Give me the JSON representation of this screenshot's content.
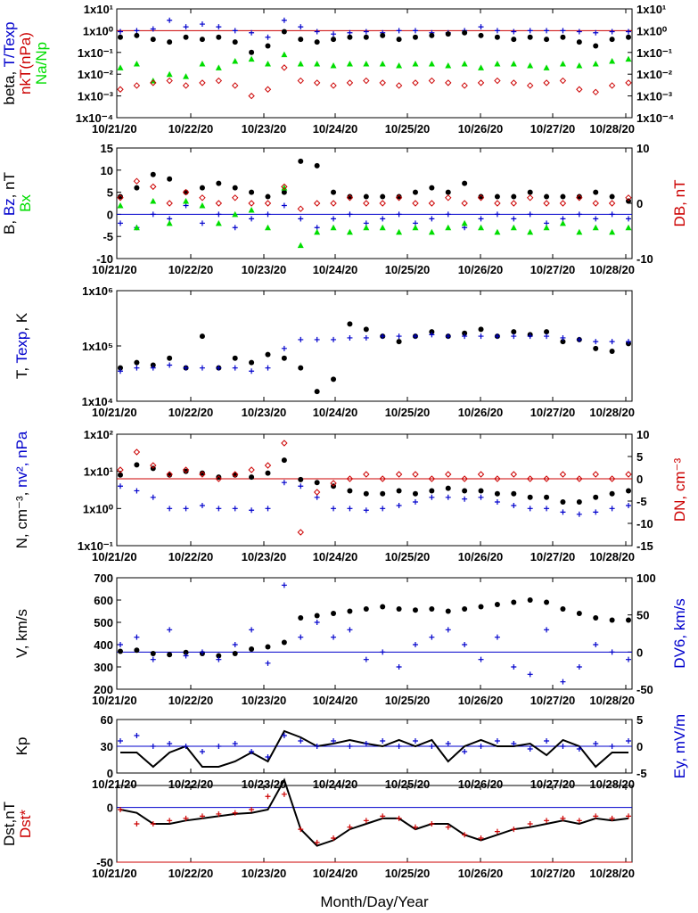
{
  "xlabel": "Month/Day/Year",
  "date_labels": [
    "10/21/20",
    "10/22/20",
    "10/23/20",
    "10/24/20",
    "10/25/20",
    "10/26/20",
    "10/27/20",
    "10/28/20"
  ],
  "colors": {
    "black": "#000000",
    "blue": "#0000cc",
    "red": "#cc0000",
    "green": "#00dd00"
  },
  "chart_data": [
    {
      "id": "beta",
      "type": "scatter",
      "ylabel_left": [
        [
          "beta, ",
          "#000000"
        ],
        [
          "T/Texp",
          "#0000cc"
        ]
      ],
      "ylabel_left2": [
        [
          "nkT(nPa)",
          "#cc0000"
        ]
      ],
      "ylabel_left3": [
        [
          "Na/Np",
          "#00dd00"
        ]
      ],
      "ylim": [
        0.0001,
        10
      ],
      "log": true,
      "tick_labels_left": [
        "1x10¹",
        "1x10⁰",
        "1x10⁻¹",
        "1x10⁻²",
        "1x10⁻³",
        "1x10⁻⁴"
      ],
      "tick_labels_right": [
        "1x10¹",
        "1x10⁰",
        "1x10⁻¹",
        "1x10⁻²",
        "1x10⁻³",
        "1x10⁻⁴"
      ],
      "hline": {
        "value": 1,
        "color": "#cc0000"
      },
      "series": [
        {
          "name": "T/Texp",
          "marker": "plus",
          "color": "#0000cc",
          "values": [
            0.9,
            1,
            1.2,
            3,
            1.5,
            2,
            1.5,
            1,
            0.8,
            0.5,
            3,
            1.5,
            0.9,
            0.7,
            0.8,
            0.9,
            0.8,
            1,
            1,
            0.8,
            0.8,
            1,
            1.5,
            1,
            0.9,
            1,
            1,
            1,
            0.9,
            0.8,
            0.9,
            0.9
          ]
        },
        {
          "name": "beta",
          "marker": "circle",
          "color": "#000000",
          "values": [
            0.5,
            0.6,
            0.4,
            0.3,
            0.5,
            0.4,
            0.5,
            0.3,
            0.1,
            0.2,
            0.9,
            0.4,
            0.3,
            0.4,
            0.5,
            0.5,
            0.6,
            0.4,
            0.5,
            0.6,
            0.7,
            0.8,
            0.6,
            0.5,
            0.4,
            0.5,
            0.4,
            0.5,
            0.3,
            0.2,
            0.4,
            0.5
          ]
        },
        {
          "name": "Na/Np",
          "marker": "triangle",
          "color": "#00dd00",
          "values": [
            0.02,
            0.03,
            0.005,
            0.01,
            0.008,
            0.03,
            0.02,
            0.04,
            0.05,
            0.03,
            0.08,
            0.03,
            0.03,
            0.025,
            0.03,
            0.03,
            0.03,
            0.025,
            0.03,
            0.03,
            0.025,
            0.03,
            0.02,
            0.03,
            0.03,
            0.025,
            0.02,
            0.03,
            0.025,
            0.03,
            0.04,
            0.05
          ]
        },
        {
          "name": "nkT(nPa)",
          "marker": "diamond",
          "color": "#cc0000",
          "values": [
            0.002,
            0.003,
            0.004,
            0.005,
            0.003,
            0.004,
            0.005,
            0.003,
            0.001,
            0.002,
            0.02,
            0.005,
            0.004,
            0.003,
            0.004,
            0.005,
            0.004,
            0.003,
            0.004,
            0.005,
            0.004,
            0.003,
            0.004,
            0.005,
            0.004,
            0.003,
            0.004,
            0.005,
            0.002,
            0.0015,
            0.003,
            0.004
          ]
        }
      ]
    },
    {
      "id": "bfield",
      "type": "scatter",
      "ylabel_left": [
        [
          "B, ",
          "#000000"
        ],
        [
          "Bz",
          "#0000cc"
        ],
        [
          ", nT",
          "#000000"
        ]
      ],
      "ylabel_left2": [
        [
          "Bx",
          "#00dd00"
        ]
      ],
      "ylabel_right": [
        [
          "DB, nT",
          "#cc0000"
        ]
      ],
      "ylim": [
        -10,
        15
      ],
      "right_ylim": [
        -10,
        10
      ],
      "tick_labels_left": [
        "15",
        "10",
        "5",
        "0",
        "-5",
        "-10"
      ],
      "tick_labels_right": [
        "10",
        "0",
        "-10"
      ],
      "hline": {
        "value": 0,
        "color": "#0000cc"
      },
      "series": [
        {
          "name": "B",
          "marker": "circle",
          "color": "#000000",
          "values": [
            4,
            6,
            9,
            8,
            5,
            6,
            7,
            6,
            5,
            4,
            5,
            12,
            11,
            5,
            4,
            4,
            4,
            4,
            5,
            6,
            5,
            7,
            4,
            4,
            4,
            5,
            4,
            4,
            4,
            5,
            4,
            3
          ]
        },
        {
          "name": "Bz",
          "marker": "plus",
          "color": "#0000cc",
          "values": [
            -2,
            -3,
            0,
            -1,
            2,
            -2,
            0,
            -3,
            -1,
            0,
            2,
            -1,
            -3,
            -1,
            0,
            -2,
            -1,
            0,
            -2,
            -1,
            0,
            -3,
            -1,
            0,
            -1,
            0,
            -2,
            -1,
            0,
            -1,
            0,
            -1
          ]
        },
        {
          "name": "Bx",
          "marker": "triangle",
          "color": "#00dd00",
          "values": [
            2,
            -3,
            3,
            -2,
            3,
            2,
            -2,
            0,
            1,
            -3,
            6,
            -7,
            -4,
            -3,
            -4,
            -3,
            -3,
            -4,
            -3,
            -4,
            -3,
            -2,
            -3,
            -4,
            -3,
            -4,
            -3,
            -2,
            -4,
            -3,
            -4,
            -3
          ]
        },
        {
          "name": "DB",
          "marker": "diamond",
          "color": "#cc0000",
          "values": [
            1,
            4,
            3,
            0,
            2,
            1,
            0,
            1,
            0,
            0,
            3,
            -1,
            0,
            0,
            1,
            0,
            0,
            1,
            0,
            0,
            1,
            0,
            1,
            0,
            0,
            1,
            0,
            0,
            1,
            0,
            0,
            1
          ]
        }
      ]
    },
    {
      "id": "temperature",
      "type": "scatter",
      "ylabel_left": [
        [
          "T, ",
          "#000000"
        ],
        [
          "Texp",
          "#0000cc"
        ],
        [
          ", K",
          "#000000"
        ]
      ],
      "ylim": [
        10000,
        1000000
      ],
      "log": true,
      "tick_labels_left": [
        "1x10⁶",
        "1x10⁵",
        "1x10⁴"
      ],
      "series": [
        {
          "name": "T",
          "marker": "circle",
          "color": "#000000",
          "values": [
            40000,
            50000,
            45000,
            60000,
            40000,
            150000,
            40000,
            60000,
            50000,
            70000,
            60000,
            40000,
            15000,
            25000,
            250000,
            200000,
            150000,
            120000,
            150000,
            180000,
            150000,
            170000,
            200000,
            150000,
            180000,
            160000,
            180000,
            120000,
            130000,
            90000,
            80000,
            110000
          ]
        },
        {
          "name": "Texp",
          "marker": "plus",
          "color": "#0000cc",
          "values": [
            35000,
            40000,
            40000,
            45000,
            40000,
            40000,
            40000,
            40000,
            35000,
            40000,
            90000,
            130000,
            130000,
            130000,
            140000,
            140000,
            150000,
            150000,
            150000,
            160000,
            150000,
            150000,
            150000,
            150000,
            150000,
            150000,
            150000,
            140000,
            130000,
            120000,
            120000,
            120000
          ]
        }
      ]
    },
    {
      "id": "density",
      "type": "scatter",
      "ylabel_left": [
        [
          "N, cm⁻³, ",
          "#000000"
        ],
        [
          "nv², nPa",
          "#0000cc"
        ]
      ],
      "ylabel_right": [
        [
          "DN, cm⁻³",
          "#cc0000"
        ]
      ],
      "ylim": [
        0.1,
        100
      ],
      "log": true,
      "right_ylim": [
        -15,
        10
      ],
      "tick_labels_left": [
        "1x10²",
        "1x10¹",
        "1x10⁰",
        "1x10⁻¹"
      ],
      "tick_labels_right": [
        "10",
        "5",
        "0",
        "-5",
        "-10",
        "-15"
      ],
      "hline": {
        "value": 0,
        "axis": "right",
        "color": "#cc0000"
      },
      "series": [
        {
          "name": "N",
          "marker": "circle",
          "color": "#000000",
          "values": [
            8,
            15,
            12,
            8,
            10,
            9,
            7,
            8,
            7,
            9,
            20,
            6,
            5,
            4,
            3,
            2.5,
            2.5,
            3,
            2.5,
            3,
            3.5,
            3,
            3,
            2.5,
            2.5,
            2,
            2,
            1.5,
            1.5,
            2,
            2.5,
            3
          ]
        },
        {
          "name": "nv2",
          "marker": "plus",
          "color": "#0000cc",
          "values": [
            4,
            3,
            2,
            1,
            1,
            1.2,
            1,
            1,
            0.9,
            1,
            5,
            4,
            2,
            1,
            1,
            0.9,
            1,
            1.2,
            1.5,
            2,
            2,
            1.8,
            2,
            1.5,
            1.2,
            1,
            1,
            0.8,
            0.7,
            0.8,
            1,
            1.2
          ]
        },
        {
          "name": "DN",
          "marker": "diamond",
          "color": "#cc0000",
          "values": [
            2,
            6,
            3,
            1,
            2,
            1,
            0,
            1,
            2,
            3,
            8,
            -12,
            -3,
            -1,
            0,
            1,
            0,
            1,
            1,
            0,
            1,
            0,
            1,
            0,
            1,
            0,
            0,
            1,
            0,
            1,
            0,
            1
          ]
        }
      ]
    },
    {
      "id": "velocity",
      "type": "scatter",
      "ylabel_left": [
        [
          "V, km/s",
          "#000000"
        ]
      ],
      "ylabel_right": [
        [
          "DV6, km/s",
          "#0000cc"
        ]
      ],
      "ylim": [
        200,
        700
      ],
      "right_ylim": [
        -50,
        100
      ],
      "tick_labels_left": [
        "700",
        "600",
        "500",
        "400",
        "300",
        "200"
      ],
      "tick_labels_right": [
        "100",
        "50",
        "0",
        "-50"
      ],
      "hline": {
        "value": 0,
        "axis": "right",
        "color": "#0000cc"
      },
      "series": [
        {
          "name": "V",
          "marker": "circle",
          "color": "#000000",
          "values": [
            370,
            375,
            360,
            355,
            365,
            360,
            350,
            360,
            380,
            390,
            410,
            520,
            530,
            540,
            550,
            560,
            570,
            560,
            555,
            560,
            550,
            560,
            570,
            580,
            590,
            600,
            590,
            560,
            540,
            520,
            510,
            510
          ]
        },
        {
          "name": "DV6",
          "marker": "plus",
          "color": "#0000cc",
          "values": [
            10,
            20,
            -10,
            30,
            -5,
            0,
            -10,
            10,
            30,
            -15,
            90,
            20,
            40,
            20,
            30,
            -10,
            0,
            -20,
            10,
            20,
            30,
            10,
            -10,
            20,
            -20,
            -30,
            30,
            -40,
            -20,
            10,
            0,
            -10
          ]
        }
      ]
    },
    {
      "id": "kp",
      "type": "line",
      "ylabel_left": [
        [
          "Kp",
          "#000000"
        ]
      ],
      "ylabel_right": [
        [
          "Ey, mV/m",
          "#0000cc"
        ]
      ],
      "ylim": [
        0,
        60
      ],
      "right_ylim": [
        -5,
        5
      ],
      "tick_labels_left": [
        "60",
        "30",
        "0"
      ],
      "tick_labels_right": [
        "5",
        "0",
        "-5"
      ],
      "hline": {
        "value": 30,
        "color": "#0000cc"
      },
      "series": [
        {
          "name": "Kp",
          "marker": "line",
          "color": "#000000",
          "values": [
            23,
            23,
            7,
            23,
            30,
            7,
            7,
            13,
            23,
            13,
            47,
            40,
            30,
            33,
            37,
            33,
            30,
            37,
            30,
            37,
            13,
            30,
            37,
            30,
            30,
            33,
            20,
            37,
            30,
            7,
            23,
            23
          ]
        },
        {
          "name": "Ey",
          "marker": "plus",
          "color": "#0000cc",
          "values": [
            1,
            2,
            0,
            0.5,
            0,
            -1,
            0,
            0.5,
            -1,
            -2,
            2,
            1,
            0,
            1,
            0,
            0.5,
            1,
            0,
            1,
            0,
            0.5,
            -1,
            0,
            1,
            0.5,
            -0.5,
            1,
            0,
            -0.5,
            0.5,
            0,
            1
          ]
        }
      ]
    },
    {
      "id": "dst",
      "type": "line",
      "ylabel_left": [
        [
          "Dst,nT",
          "#000000"
        ]
      ],
      "ylabel_left2": [
        [
          "Dst*",
          "#cc0000"
        ]
      ],
      "ylim": [
        -50,
        20
      ],
      "tick_labels_left": [
        "0",
        "-50"
      ],
      "hlines": [
        {
          "value": 0,
          "color": "#0000cc"
        },
        {
          "value": -50,
          "color": "#cc0000"
        }
      ],
      "series": [
        {
          "name": "Dst",
          "marker": "line",
          "color": "#000000",
          "values": [
            -2,
            -5,
            -15,
            -15,
            -12,
            -10,
            -8,
            -6,
            -5,
            -2,
            25,
            -20,
            -35,
            -30,
            -20,
            -15,
            -10,
            -10,
            -20,
            -15,
            -15,
            -25,
            -30,
            -25,
            -20,
            -18,
            -15,
            -12,
            -15,
            -10,
            -12,
            -10
          ]
        },
        {
          "name": "Dst*",
          "marker": "plus",
          "color": "#cc0000",
          "values": [
            -2,
            -15,
            -15,
            -12,
            -10,
            -8,
            -6,
            -5,
            -2,
            10,
            12,
            -20,
            -32,
            -28,
            -18,
            -12,
            -8,
            -10,
            -18,
            -15,
            -18,
            -25,
            -28,
            -22,
            -20,
            -15,
            -12,
            -10,
            -12,
            -8,
            -10,
            -8
          ]
        }
      ]
    }
  ]
}
